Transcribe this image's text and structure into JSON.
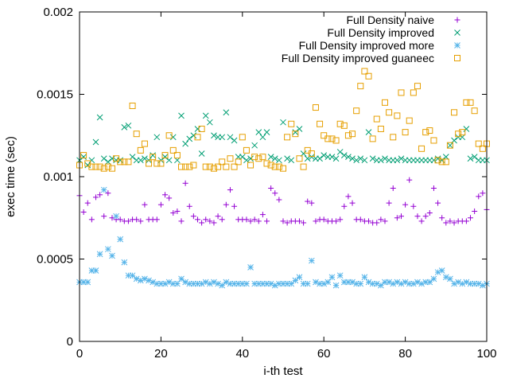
{
  "chart_data": {
    "type": "scatter",
    "title": "",
    "xlabel": "i-th test",
    "ylabel": "exec time (sec)",
    "xlim": [
      0,
      100
    ],
    "ylim": [
      0,
      0.002
    ],
    "xticks": [
      0,
      20,
      40,
      60,
      80,
      100
    ],
    "xtick_labels": [
      "0",
      "20",
      "40",
      "60",
      "80",
      "100"
    ],
    "yticks": [
      0,
      0.0005,
      0.001,
      0.0015,
      0.002
    ],
    "ytick_labels": [
      "0",
      "0.0005",
      "0.001",
      "0.0015",
      "0.002"
    ],
    "grid": false,
    "legend_position": "top-right",
    "series": [
      {
        "name": "Full Density naive",
        "marker": "plus",
        "color": "#9400d3",
        "y": [
          0.000885,
          0.000785,
          0.00084,
          0.00074,
          0.000875,
          0.00089,
          0.00076,
          0.0009,
          0.00075,
          0.00074,
          0.00074,
          0.00073,
          0.00073,
          0.00074,
          0.00074,
          0.00073,
          0.00083,
          0.00074,
          0.00074,
          0.00074,
          0.00083,
          0.00089,
          0.00087,
          0.00078,
          0.00079,
          0.00073,
          0.00096,
          0.00082,
          0.00076,
          0.00074,
          0.00072,
          0.00074,
          0.00073,
          0.00072,
          0.00076,
          0.00074,
          0.00083,
          0.00092,
          0.00082,
          0.00074,
          0.00074,
          0.00074,
          0.00073,
          0.00074,
          0.00073,
          0.00077,
          0.00073,
          0.00093,
          0.0009,
          0.00086,
          0.00073,
          0.00072,
          0.00073,
          0.00073,
          0.00073,
          0.00072,
          0.00085,
          0.00084,
          0.00073,
          0.00074,
          0.00074,
          0.00073,
          0.00073,
          0.00073,
          0.00074,
          0.00082,
          0.00088,
          0.00084,
          0.00074,
          0.00074,
          0.00073,
          0.00073,
          0.00072,
          0.00072,
          0.00074,
          0.00073,
          0.00084,
          0.00093,
          0.00075,
          0.00076,
          0.00083,
          0.00098,
          0.00082,
          0.00076,
          0.00073,
          0.00076,
          0.00078,
          0.00093,
          0.00084,
          0.00075,
          0.00072,
          0.00073,
          0.00072,
          0.00073,
          0.00073,
          0.00073,
          0.00075,
          0.00079,
          0.00088,
          0.0009,
          0.0008
        ]
      },
      {
        "name": "Full Density improved",
        "marker": "cross",
        "color": "#009e73",
        "y": [
          0.0011,
          0.00112,
          0.00107,
          0.0011,
          0.00121,
          0.00136,
          0.00111,
          0.00109,
          0.00111,
          0.0011,
          0.0011,
          0.0013,
          0.00131,
          0.00112,
          0.0011,
          0.0011,
          0.00111,
          0.0011,
          0.00113,
          0.00124,
          0.0011,
          0.00112,
          0.0011,
          0.00124,
          0.0011,
          0.00137,
          0.0012,
          0.00123,
          0.00125,
          0.00129,
          0.00114,
          0.00137,
          0.00133,
          0.00125,
          0.00124,
          0.00124,
          0.00139,
          0.00124,
          0.00122,
          0.00112,
          0.00112,
          0.0011,
          0.00111,
          0.00119,
          0.00127,
          0.00124,
          0.00127,
          0.00112,
          0.00111,
          0.0011,
          0.00133,
          0.00111,
          0.0011,
          0.00127,
          0.00129,
          0.00114,
          0.00111,
          0.00112,
          0.00111,
          0.00111,
          0.00113,
          0.00112,
          0.00112,
          0.00111,
          0.00115,
          0.00113,
          0.00112,
          0.00111,
          0.0011,
          0.00111,
          0.0011,
          0.00127,
          0.00111,
          0.0011,
          0.0011,
          0.00111,
          0.0011,
          0.0011,
          0.0011,
          0.00111,
          0.0011,
          0.0011,
          0.0011,
          0.0011,
          0.0011,
          0.0011,
          0.0011,
          0.0011,
          0.00111,
          0.0011,
          0.00112,
          0.00119,
          0.00122,
          0.00124,
          0.00124,
          0.00129,
          0.00111,
          0.00112,
          0.0011,
          0.0011,
          0.0011
        ]
      },
      {
        "name": "Full Density improved more",
        "marker": "star",
        "color": "#56b4e9",
        "y": [
          0.00036,
          0.00036,
          0.00036,
          0.00043,
          0.00043,
          0.00053,
          0.00092,
          0.00056,
          0.00052,
          0.00076,
          0.00062,
          0.00048,
          0.0004,
          0.0004,
          0.00038,
          0.00037,
          0.00038,
          0.00037,
          0.00036,
          0.00035,
          0.00035,
          0.00035,
          0.00036,
          0.00035,
          0.00035,
          0.00038,
          0.00036,
          0.00035,
          0.00035,
          0.00035,
          0.00035,
          0.00036,
          0.00035,
          0.00036,
          0.00035,
          0.00034,
          0.00036,
          0.00035,
          0.00035,
          0.00035,
          0.00035,
          0.00035,
          0.00045,
          0.00035,
          0.00035,
          0.00035,
          0.00035,
          0.00035,
          0.00034,
          0.00035,
          0.00035,
          0.00035,
          0.00035,
          0.00037,
          0.00039,
          0.00035,
          0.00035,
          0.00049,
          0.00036,
          0.00035,
          0.00035,
          0.00036,
          0.00039,
          0.00034,
          0.0004,
          0.00036,
          0.00036,
          0.00036,
          0.00035,
          0.00035,
          0.00039,
          0.00036,
          0.00035,
          0.00035,
          0.00034,
          0.00036,
          0.00036,
          0.00035,
          0.00036,
          0.00035,
          0.00036,
          0.00035,
          0.00035,
          0.00036,
          0.00035,
          0.00036,
          0.00036,
          0.00038,
          0.00042,
          0.00043,
          0.00039,
          0.00038,
          0.00035,
          0.00036,
          0.00035,
          0.00036,
          0.00035,
          0.00035,
          0.00035,
          0.00034,
          0.00035
        ]
      },
      {
        "name": "Full Density improved guaneec",
        "marker": "square",
        "color": "#e69f00",
        "y": [
          0.00107,
          0.00113,
          0.00108,
          0.00106,
          0.00106,
          0.00106,
          0.00105,
          0.00106,
          0.00105,
          0.00111,
          0.00109,
          0.00109,
          0.00109,
          0.00143,
          0.00126,
          0.00116,
          0.0012,
          0.00108,
          0.00112,
          0.00108,
          0.00108,
          0.00113,
          0.00125,
          0.00116,
          0.00113,
          0.00106,
          0.00106,
          0.00106,
          0.00107,
          0.00124,
          0.00129,
          0.00106,
          0.00106,
          0.00105,
          0.00106,
          0.00109,
          0.00106,
          0.00111,
          0.00106,
          0.00109,
          0.00124,
          0.00116,
          0.00107,
          0.00112,
          0.00111,
          0.00112,
          0.00108,
          0.00107,
          0.00106,
          0.00106,
          0.00105,
          0.00124,
          0.00132,
          0.00126,
          0.00111,
          0.00106,
          0.00116,
          0.00114,
          0.00142,
          0.00132,
          0.00125,
          0.00123,
          0.00123,
          0.00122,
          0.00132,
          0.00131,
          0.00125,
          0.00126,
          0.0014,
          0.00155,
          0.00164,
          0.00161,
          0.00123,
          0.00135,
          0.00129,
          0.00145,
          0.00139,
          0.00124,
          0.00137,
          0.00151,
          0.00127,
          0.00134,
          0.00151,
          0.00155,
          0.00117,
          0.00127,
          0.00128,
          0.00122,
          0.0011,
          0.00109,
          0.00109,
          0.00119,
          0.00139,
          0.00126,
          0.00127,
          0.00145,
          0.00145,
          0.0014,
          0.0012,
          0.00117,
          0.0012
        ]
      }
    ]
  }
}
